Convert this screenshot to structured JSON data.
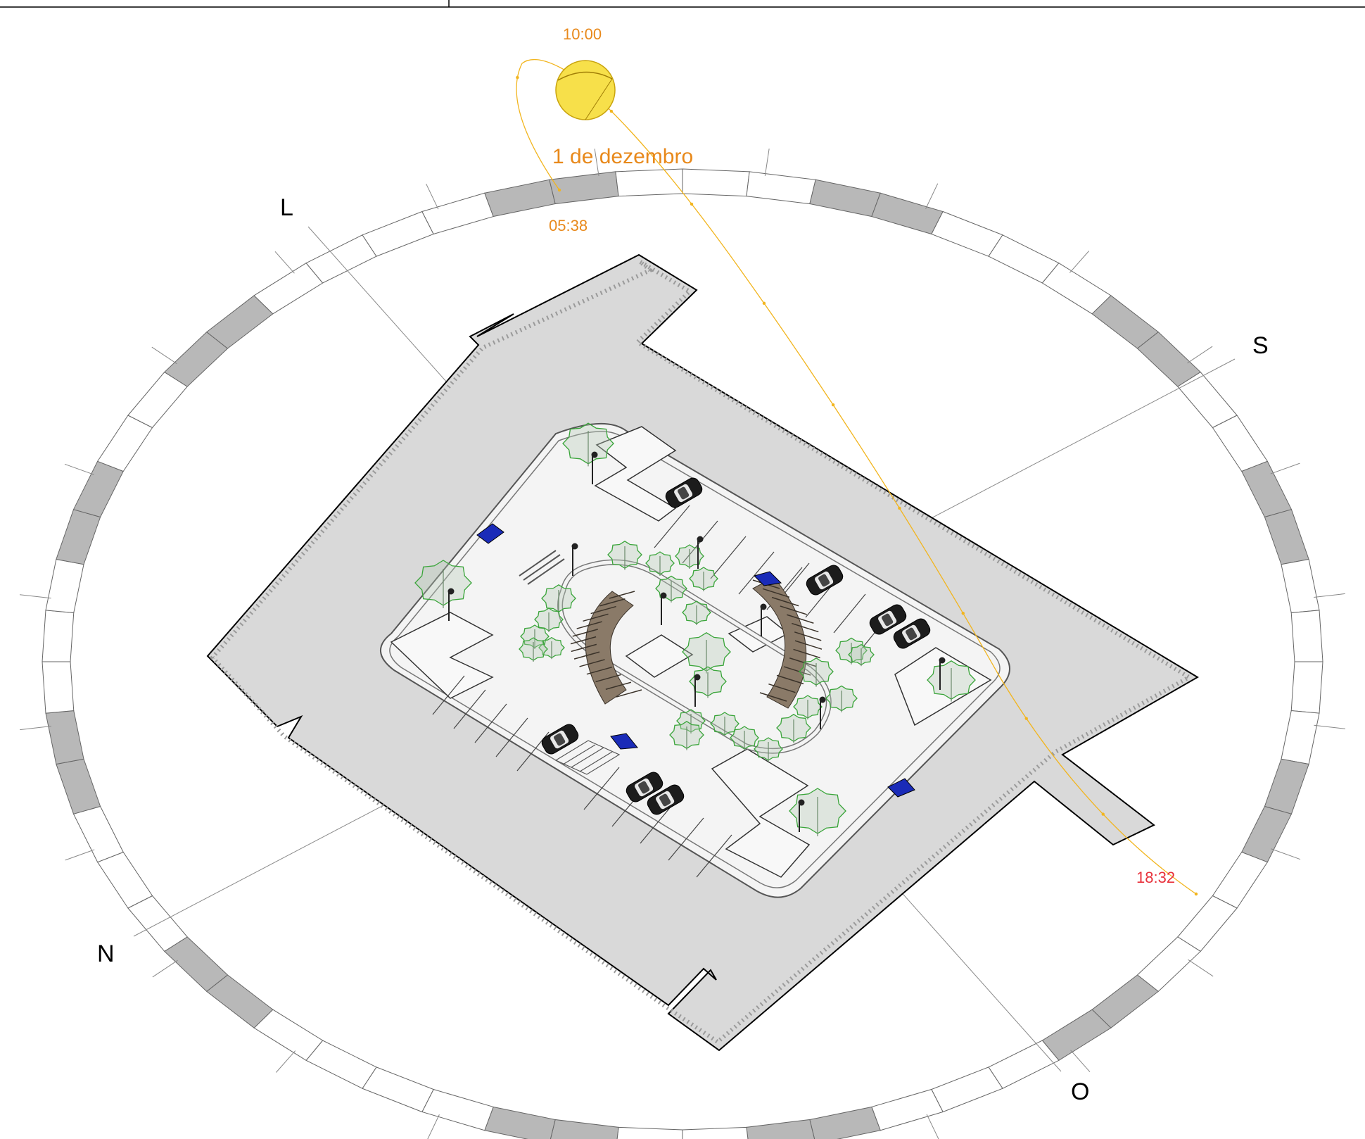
{
  "compass": {
    "east": "L",
    "south": "S",
    "north": "N",
    "west": "O"
  },
  "sun": {
    "date": "1 de dezembro",
    "current_time": "10:00",
    "sunrise": "05:38",
    "sunset": "18:32"
  },
  "colors": {
    "sun_fill": "#f7e04a",
    "sun_path": "#f2b51e",
    "time_orange": "#e8891b",
    "sunset_red": "#e8323c",
    "pavement": "#d9d9d9",
    "plaza": "#f4f4f4",
    "ring_dark": "#b8b8b8",
    "tree_green": "#3aa53a",
    "bench_blue": "#1a2bb8",
    "pergola_brown": "#8a7a68"
  },
  "icons": [
    "sun-icon",
    "tree-icon",
    "car-icon",
    "lamp-post-icon",
    "bench-icon",
    "pergola-icon"
  ],
  "counts": {
    "ring_segments": 60,
    "sun_path_dots": 10
  }
}
